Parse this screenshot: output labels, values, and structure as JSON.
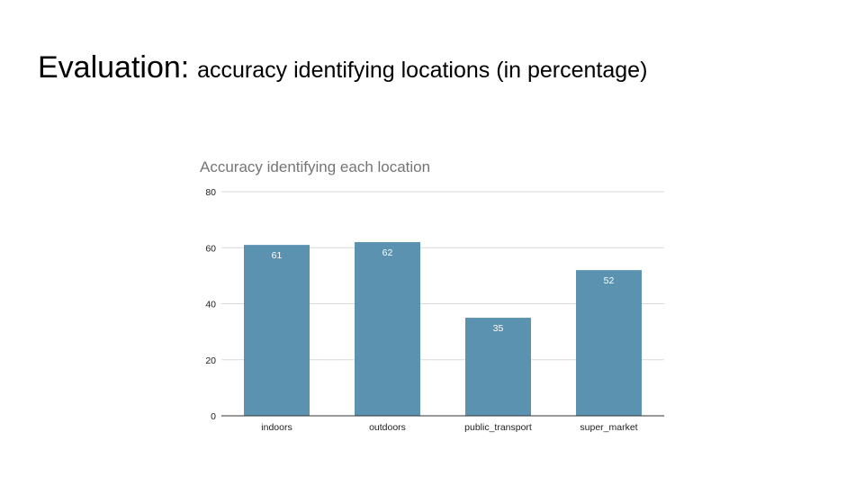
{
  "slide": {
    "title_main": "Evaluation:",
    "title_sub": "accuracy identifying locations (in percentage)"
  },
  "chart_data": {
    "type": "bar",
    "title": "Accuracy identifying each location",
    "categories": [
      "indoors",
      "outdoors",
      "public_transport",
      "super_market"
    ],
    "values": [
      61,
      62,
      35,
      52
    ],
    "data_labels": [
      "61",
      "62",
      "35",
      "52"
    ],
    "xlabel": "",
    "ylabel": "",
    "ylim": [
      0,
      80
    ],
    "yticks": [
      0,
      20,
      40,
      60,
      80
    ],
    "ytick_labels": [
      "0",
      "20",
      "40",
      "60",
      "80"
    ],
    "grid": true,
    "legend": "none",
    "colors": {
      "bar": "#5b92b0",
      "gridline": "#d9d9d9",
      "baseline": "#333333",
      "chart_title": "#757575"
    }
  }
}
